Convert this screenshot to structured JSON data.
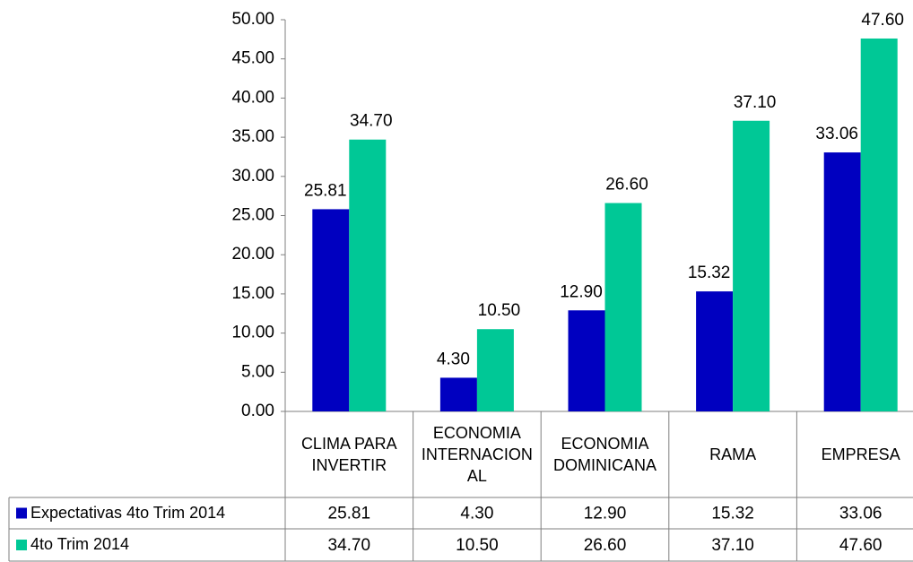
{
  "chart_data": {
    "type": "bar",
    "categories": [
      "CLIMA PARA INVERTIR",
      "ECONOMIA INTERNACIONAL",
      "ECONOMIA DOMINICANA",
      "RAMA",
      "EMPRESA"
    ],
    "series": [
      {
        "name": "Expectativas 4to Trim 2014",
        "color": "#0000c0",
        "values": [
          25.81,
          4.3,
          12.9,
          15.32,
          33.06
        ],
        "value_labels": [
          "25.81",
          "4.30",
          "12.90",
          "15.32",
          "33.06"
        ]
      },
      {
        "name": "4to Trim 2014",
        "color": "#00c896",
        "values": [
          34.7,
          10.5,
          26.6,
          37.1,
          47.6
        ],
        "value_labels": [
          "34.70",
          "10.50",
          "26.60",
          "37.10",
          "47.60"
        ]
      }
    ],
    "ylim": [
      0,
      50
    ],
    "yticks": [
      {
        "value": 0,
        "label": "0.00"
      },
      {
        "value": 5,
        "label": "5.00"
      },
      {
        "value": 10,
        "label": "10.00"
      },
      {
        "value": 15,
        "label": "15.00"
      },
      {
        "value": 20,
        "label": "20.00"
      },
      {
        "value": 25,
        "label": "25.00"
      },
      {
        "value": 30,
        "label": "30.00"
      },
      {
        "value": 35,
        "label": "35.00"
      },
      {
        "value": 40,
        "label": "40.00"
      },
      {
        "value": 45,
        "label": "45.00"
      },
      {
        "value": 50,
        "label": "50.00"
      }
    ],
    "grid": false
  }
}
